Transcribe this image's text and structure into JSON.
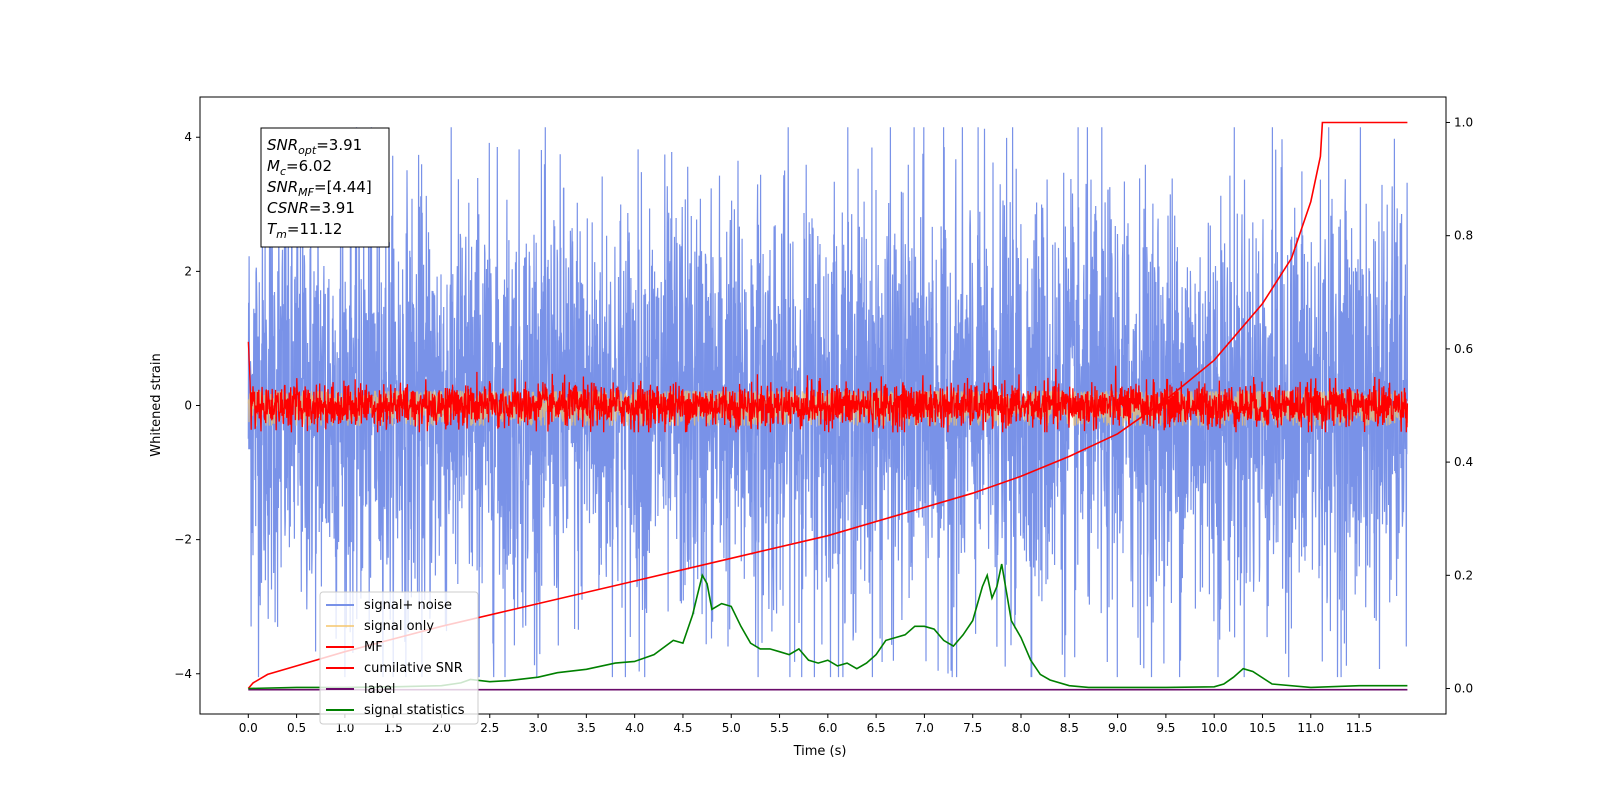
{
  "chart_data": {
    "type": "line",
    "xlabel": "Time (s)",
    "ylabel": "Whitened strain",
    "xlim": [
      -0.5,
      12.4
    ],
    "ylim": [
      -4.6,
      4.6
    ],
    "y2lim": [
      -0.045,
      1.045
    ],
    "x_ticks": [
      0.0,
      0.5,
      1.0,
      1.5,
      2.0,
      2.5,
      3.0,
      3.5,
      4.0,
      4.5,
      5.0,
      5.5,
      6.0,
      6.5,
      7.0,
      7.5,
      8.0,
      8.5,
      9.0,
      9.5,
      10.0,
      10.5,
      11.0,
      11.5
    ],
    "x_tick_labels": [
      "0.0",
      "0.5",
      "1.0",
      "1.5",
      "2.0",
      "2.5",
      "3.0",
      "3.5",
      "4.0",
      "4.5",
      "5.0",
      "5.5",
      "6.0",
      "6.5",
      "7.0",
      "7.5",
      "8.0",
      "8.5",
      "9.0",
      "9.5",
      "10.0",
      "10.5",
      "11.0",
      "11.5"
    ],
    "y_ticks": [
      -4,
      -2,
      0,
      2,
      4
    ],
    "y_tick_labels": [
      "−4",
      "−2",
      "0",
      "2",
      "4"
    ],
    "y2_ticks": [
      0.0,
      0.2,
      0.4,
      0.6,
      0.8,
      1.0
    ],
    "y2_tick_labels": [
      "0.0",
      "0.2",
      "0.4",
      "0.6",
      "0.8",
      "1.0"
    ],
    "grid": false,
    "legend_position": "lower-left",
    "x_range": [
      0.0,
      12.0
    ],
    "series": [
      {
        "name": "signal+ noise",
        "axis": "left",
        "color": "#7992e8",
        "noise": {
          "center": 0.0,
          "typical_amplitude": 1.6,
          "max": 4.15,
          "min": -4.05
        }
      },
      {
        "name": "signal only",
        "axis": "left",
        "color": "#f5c56b",
        "noise": {
          "center": 0.0,
          "typical_amplitude": 0.3,
          "max": 0.3,
          "min": -0.3
        }
      },
      {
        "name": "MF",
        "axis": "left",
        "color": "#ff0000",
        "noise": {
          "center": 0.0,
          "typical_amplitude": 0.3,
          "max": 0.95,
          "min": -0.4
        }
      },
      {
        "name": "cumilative SNR",
        "axis": "right",
        "color": "#ff0000",
        "x": [
          0.0,
          0.05,
          0.2,
          0.5,
          1.0,
          2.0,
          3.0,
          4.0,
          5.0,
          6.0,
          7.0,
          7.5,
          8.0,
          8.5,
          9.0,
          9.5,
          10.0,
          10.5,
          10.8,
          11.0,
          11.1,
          11.12,
          12.0
        ],
        "y": [
          0.0,
          0.01,
          0.025,
          0.04,
          0.065,
          0.11,
          0.15,
          0.19,
          0.23,
          0.27,
          0.32,
          0.345,
          0.375,
          0.41,
          0.45,
          0.51,
          0.58,
          0.68,
          0.76,
          0.86,
          0.94,
          1.0,
          1.0
        ]
      },
      {
        "name": "label",
        "axis": "right",
        "color": "#6a0a6a",
        "x": [
          0.0,
          12.0
        ],
        "y": [
          -0.002,
          -0.002
        ]
      },
      {
        "name": "signal statistics",
        "axis": "right",
        "color": "#008000",
        "x": [
          0.0,
          0.5,
          1.0,
          1.5,
          2.0,
          2.2,
          2.3,
          2.5,
          2.7,
          3.0,
          3.2,
          3.5,
          3.8,
          4.0,
          4.2,
          4.4,
          4.5,
          4.6,
          4.65,
          4.7,
          4.75,
          4.8,
          4.9,
          5.0,
          5.1,
          5.2,
          5.3,
          5.4,
          5.5,
          5.6,
          5.7,
          5.8,
          5.9,
          6.0,
          6.1,
          6.2,
          6.3,
          6.4,
          6.5,
          6.6,
          6.7,
          6.8,
          6.9,
          7.0,
          7.1,
          7.2,
          7.3,
          7.4,
          7.5,
          7.6,
          7.65,
          7.7,
          7.75,
          7.8,
          7.85,
          7.9,
          8.0,
          8.1,
          8.2,
          8.3,
          8.5,
          8.7,
          9.0,
          9.5,
          10.0,
          10.1,
          10.2,
          10.3,
          10.4,
          10.6,
          11.0,
          11.5,
          12.0
        ],
        "y": [
          0.0,
          0.002,
          0.002,
          0.003,
          0.005,
          0.01,
          0.016,
          0.012,
          0.014,
          0.02,
          0.028,
          0.034,
          0.045,
          0.048,
          0.06,
          0.085,
          0.08,
          0.13,
          0.165,
          0.2,
          0.185,
          0.14,
          0.15,
          0.145,
          0.11,
          0.08,
          0.07,
          0.07,
          0.065,
          0.06,
          0.07,
          0.05,
          0.045,
          0.05,
          0.04,
          0.045,
          0.035,
          0.045,
          0.06,
          0.085,
          0.09,
          0.095,
          0.11,
          0.11,
          0.105,
          0.085,
          0.075,
          0.095,
          0.12,
          0.18,
          0.2,
          0.16,
          0.18,
          0.22,
          0.17,
          0.12,
          0.09,
          0.05,
          0.025,
          0.015,
          0.005,
          0.002,
          0.002,
          0.002,
          0.003,
          0.008,
          0.02,
          0.035,
          0.03,
          0.008,
          0.002,
          0.005,
          0.005
        ]
      }
    ],
    "annotation": [
      {
        "main": "SNR",
        "sub": "opt",
        "value": "=3.91"
      },
      {
        "main": "M",
        "sub": "c",
        "value": "=6.02"
      },
      {
        "main": "SNR",
        "sub": "MF",
        "value": "=[4.44]"
      },
      {
        "main": "CSNR",
        "sub": "",
        "value": "=3.91"
      },
      {
        "main": "T",
        "sub": "m",
        "value": "=11.12"
      }
    ]
  }
}
